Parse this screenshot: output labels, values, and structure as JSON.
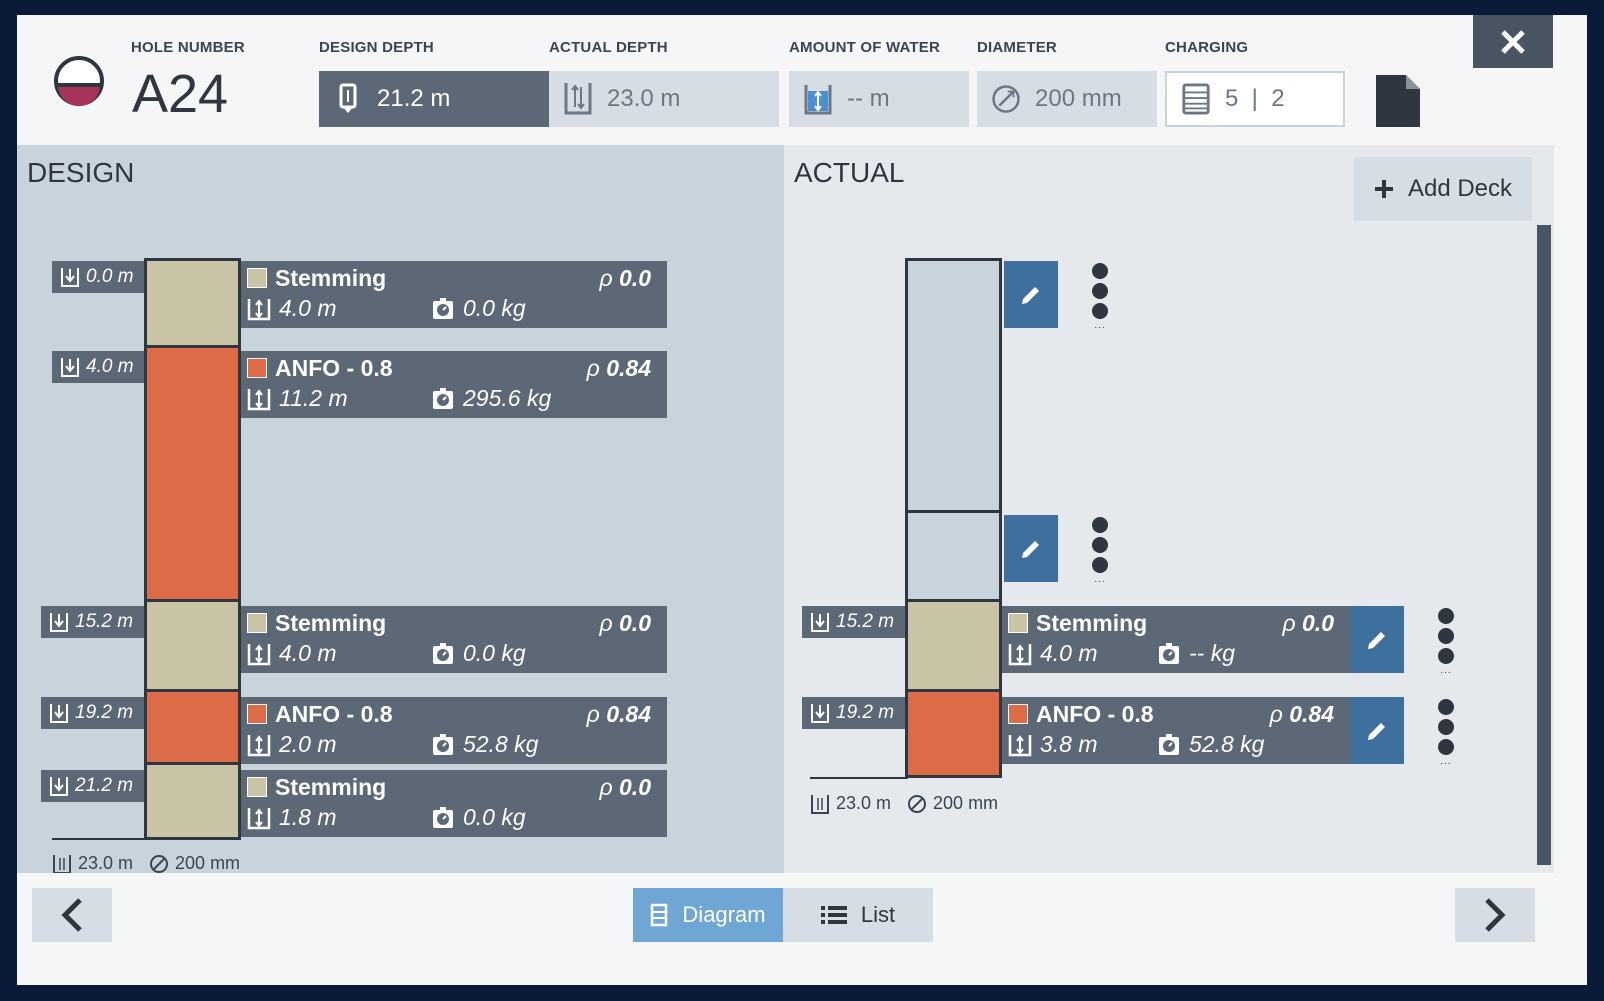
{
  "header": {
    "hole_number_label": "HOLE NUMBER",
    "hole_number": "A24",
    "design_depth_label": "DESIGN DEPTH",
    "design_depth": "21.2 m",
    "actual_depth_label": "ACTUAL DEPTH",
    "actual_depth": "23.0 m",
    "water_label": "AMOUNT OF WATER",
    "water": "-- m",
    "diameter_label": "DIAMETER",
    "diameter": "200 mm",
    "charging_label": "CHARGING",
    "charging": "5  |  2"
  },
  "design": {
    "title": "DESIGN",
    "decks": [
      {
        "depth": "0.0 m",
        "name": "Stemming",
        "rho": "0.0",
        "length": "4.0 m",
        "mass": "0.0 kg",
        "color": "#c9c4a6"
      },
      {
        "depth": "4.0 m",
        "name": "ANFO - 0.8",
        "rho": "0.84",
        "length": "11.2 m",
        "mass": "295.6 kg",
        "color": "#dc6b47"
      },
      {
        "depth": "15.2 m",
        "name": "Stemming",
        "rho": "0.0",
        "length": "4.0 m",
        "mass": "0.0 kg",
        "color": "#c9c4a6"
      },
      {
        "depth": "19.2 m",
        "name": "ANFO - 0.8",
        "rho": "0.84",
        "length": "2.0 m",
        "mass": "52.8 kg",
        "color": "#dc6b47"
      },
      {
        "depth": "21.2 m",
        "name": "Stemming",
        "rho": "0.0",
        "length": "1.8 m",
        "mass": "0.0 kg",
        "color": "#c9c4a6"
      }
    ],
    "bottom_depth": "23.0 m",
    "bottom_diameter": "200 mm"
  },
  "actual": {
    "title": "ACTUAL",
    "add_deck_label": "Add Deck",
    "decks": [
      {
        "depth": "15.2 m",
        "name": "Stemming",
        "rho": "0.0",
        "length": "4.0 m",
        "mass": "-- kg",
        "color": "#c9c4a6"
      },
      {
        "depth": "19.2 m",
        "name": "ANFO - 0.8",
        "rho": "0.84",
        "length": "3.8 m",
        "mass": "52.8 kg",
        "color": "#dc6b47"
      }
    ],
    "bottom_depth": "23.0 m",
    "bottom_diameter": "200 mm"
  },
  "footer": {
    "diagram_label": "Diagram",
    "list_label": "List"
  },
  "colors": {
    "stemming": "#c9c4a6",
    "anfo": "#dc6b47",
    "card": "#5c6875",
    "edit": "#3f6f9d",
    "active_tab": "#6fa6d4"
  },
  "icons": {
    "hole": "hole-status-icon",
    "close": "close-icon",
    "document": "document-icon",
    "prev": "chevron-left-icon",
    "next": "chevron-right-icon"
  }
}
